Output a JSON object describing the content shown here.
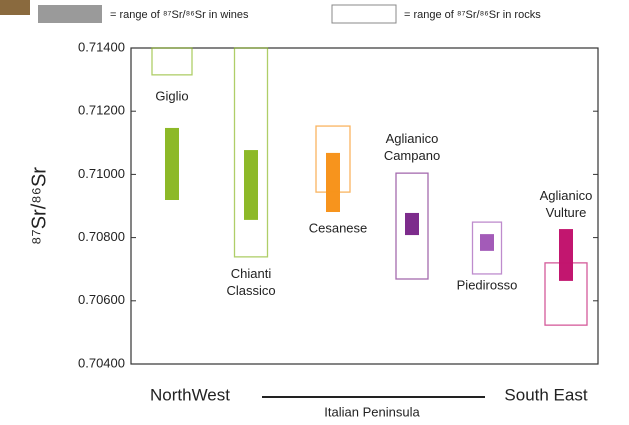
{
  "chart_data": {
    "type": "range_bar",
    "y_label": "⁸⁷Sr/⁸⁶Sr",
    "categories": [
      "Giglio",
      "Chianti Classico",
      "Cesanese",
      "Aglianico Campano",
      "Piedirosso",
      "Aglianico Vulture"
    ],
    "colors": [
      "#8db928",
      "#8db928",
      "#f7941d",
      "#7d2c8c",
      "#a35bb8",
      "#c2166f"
    ],
    "series": [
      {
        "name": "= range of ⁸⁷Sr/⁸⁶Sr in wines",
        "style": "filled",
        "color": "#9a9a9a",
        "low": [
          0.70919,
          0.70856,
          0.70881,
          0.70808,
          0.70758,
          0.70663
        ],
        "high": [
          0.71147,
          0.71077,
          0.71068,
          0.70878,
          0.70811,
          0.70827
        ]
      },
      {
        "name": "= range of ⁸⁷Sr/⁸⁶Sr in rocks",
        "style": "outline",
        "color": "#888888",
        "low": [
          0.71315,
          0.70739,
          0.70944,
          0.70669,
          0.70685,
          0.70523
        ],
        "high": [
          0.714,
          0.714,
          0.71153,
          0.71004,
          0.70849,
          0.7072
        ]
      }
    ],
    "ylim": [
      0.704,
      0.714
    ],
    "yticks": [
      {
        "value": 0.704,
        "label": "0.70400"
      },
      {
        "value": 0.706,
        "label": "0.70600"
      },
      {
        "value": 0.708,
        "label": "0.70800"
      },
      {
        "value": 0.71,
        "label": "0.71000"
      },
      {
        "value": 0.712,
        "label": "0.71200"
      },
      {
        "value": 0.714,
        "label": "0.71400"
      }
    ],
    "x_left_label": "NorthWest",
    "x_right_label": "South East",
    "x_axis_label": "Italian Peninsula"
  }
}
